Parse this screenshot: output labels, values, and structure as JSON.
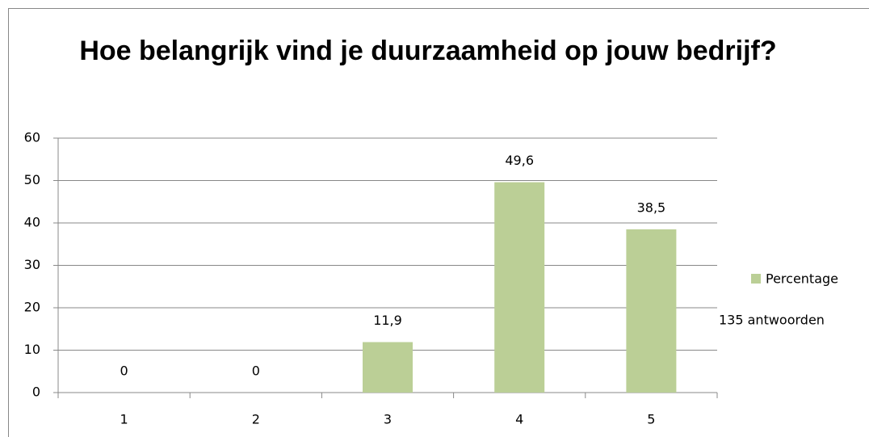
{
  "chart_data": {
    "type": "bar",
    "title": "Hoe belangrijk vind je duurzaamheid op jouw bedrijf?",
    "categories": [
      "1",
      "2",
      "3",
      "4",
      "5"
    ],
    "series": [
      {
        "name": "Percentage",
        "color": "#bbcf96",
        "values": [
          0,
          0,
          11.9,
          49.6,
          38.5
        ],
        "value_labels": [
          "0",
          "0",
          "11,9",
          "49,6",
          "38,5"
        ]
      }
    ],
    "ylim": [
      0,
      60
    ],
    "yticks": [
      0,
      10,
      20,
      30,
      40,
      50,
      60
    ],
    "grid": true,
    "legend": "right",
    "annotations": [
      "135 antwoorden"
    ]
  }
}
